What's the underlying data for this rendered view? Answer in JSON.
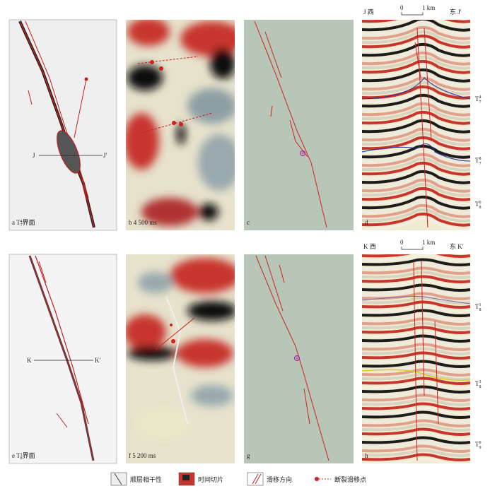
{
  "row1": {
    "a": {
      "letter": "a",
      "horizon": {
        "name": "T",
        "sub": "7",
        "sup": "4"
      },
      "suffix": "界面",
      "section_start": "J",
      "section_end": "J′"
    },
    "b": {
      "letter": "b",
      "time": "4 500 ms"
    },
    "c": {
      "letter": "c"
    },
    "d": {
      "letter": "d",
      "west": "J 西",
      "scale_zero": "0",
      "scale_length": "1 km",
      "east": "东 J′",
      "horizons": [
        {
          "name": "T",
          "sub": "7",
          "sup": "4"
        },
        {
          "name": "T",
          "sub": "7",
          "sup": "8"
        },
        {
          "name": "T",
          "sub": "8",
          "sup": "0"
        }
      ]
    }
  },
  "row2": {
    "e": {
      "letter": "e",
      "horizon": {
        "name": "T",
        "sub": "8",
        "sup": "1"
      },
      "suffix": "界面",
      "section_start": "K",
      "section_end": "K′"
    },
    "f": {
      "letter": "f",
      "time": "5 200 ms"
    },
    "g": {
      "letter": "g"
    },
    "h": {
      "letter": "h",
      "west": "K 西",
      "scale_zero": "0",
      "scale_length": "1 km",
      "east": "东 K′",
      "horizons": [
        {
          "name": "T",
          "sub": "8",
          "sup": "1"
        },
        {
          "name": "T",
          "sub": "8",
          "sup": "3"
        },
        {
          "name": "T",
          "sub": "9",
          "sup": "0"
        }
      ]
    }
  },
  "legend": [
    "顺层相干性",
    "时间切片",
    "滑移方向",
    "断裂滑移点"
  ]
}
